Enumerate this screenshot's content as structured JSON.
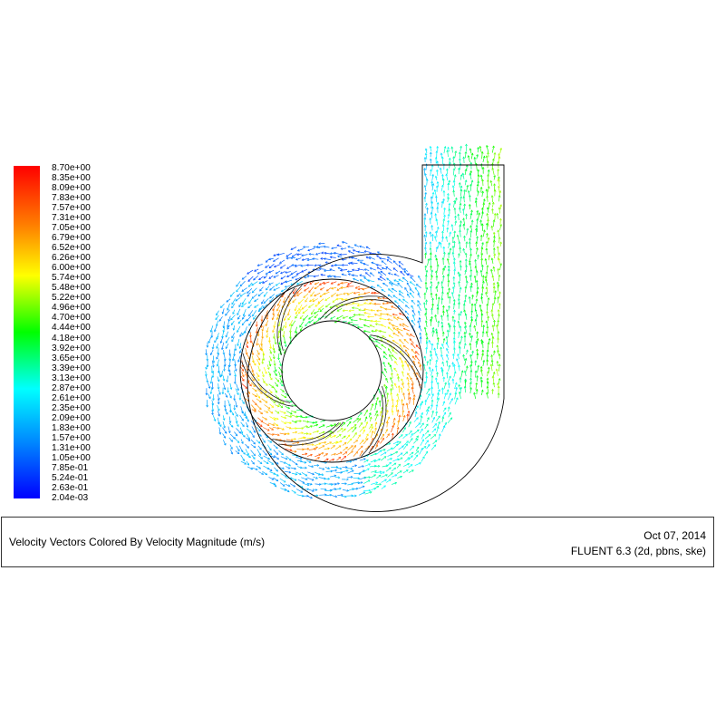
{
  "legend": {
    "ticks": [
      "8.70e+00",
      "8.35e+00",
      "8.09e+00",
      "7.83e+00",
      "7.57e+00",
      "7.31e+00",
      "7.05e+00",
      "6.79e+00",
      "6.52e+00",
      "6.26e+00",
      "6.00e+00",
      "5.74e+00",
      "5.48e+00",
      "5.22e+00",
      "4.96e+00",
      "4.70e+00",
      "4.44e+00",
      "4.18e+00",
      "3.92e+00",
      "3.65e+00",
      "3.39e+00",
      "3.13e+00",
      "2.87e+00",
      "2.61e+00",
      "2.35e+00",
      "2.09e+00",
      "1.83e+00",
      "1.57e+00",
      "1.31e+00",
      "1.05e+00",
      "7.85e-01",
      "5.24e-01",
      "2.63e-01",
      "2.04e-03"
    ],
    "colors": [
      "#ff0000",
      "#ff8000",
      "#ffff00",
      "#00ff00",
      "#00ffff",
      "#0080ff",
      "#0000ff"
    ]
  },
  "footer": {
    "caption": "Velocity Vectors Colored By Velocity Magnitude (m/s)",
    "date": "Oct 07, 2014",
    "solver": "FLUENT 6.3 (2d, pbns, ske)"
  }
}
